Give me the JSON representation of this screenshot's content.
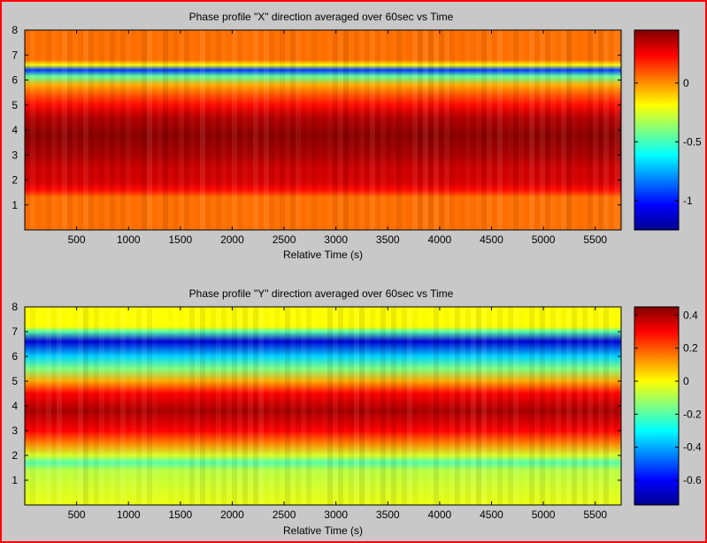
{
  "colors": {
    "frame_border": "#ff0000",
    "background": "#c8c8c8"
  },
  "chart_data": [
    {
      "type": "heatmap",
      "title": "Phase profile \"X\" direction averaged over 60sec vs Time",
      "xlabel": "Relative Time (s)",
      "ylabel": "",
      "xlim": [
        0,
        5750
      ],
      "ylim": [
        0,
        8
      ],
      "xticks": [
        500,
        1000,
        1500,
        2000,
        2500,
        3000,
        3500,
        4000,
        4500,
        5000,
        5500
      ],
      "yticks": [
        1,
        2,
        3,
        4,
        5,
        6,
        7,
        8
      ],
      "colormap": "jet",
      "clim": [
        -1.25,
        0.45
      ],
      "colorbar_ticks": [
        0,
        -0.5,
        -1
      ],
      "colorbar_ticklabels": [
        "0",
        "-0.5",
        "-1"
      ],
      "profile": [
        {
          "y": 0.0,
          "v": 0.05
        },
        {
          "y": 1.3,
          "v": 0.05
        },
        {
          "y": 1.6,
          "v": 0.22
        },
        {
          "y": 1.9,
          "v": 0.3
        },
        {
          "y": 2.5,
          "v": 0.32
        },
        {
          "y": 3.0,
          "v": 0.38
        },
        {
          "y": 3.8,
          "v": 0.43
        },
        {
          "y": 4.5,
          "v": 0.36
        },
        {
          "y": 5.0,
          "v": 0.22
        },
        {
          "y": 5.4,
          "v": 0.1
        },
        {
          "y": 5.8,
          "v": -0.05
        },
        {
          "y": 6.15,
          "v": -0.45
        },
        {
          "y": 6.4,
          "v": -0.95
        },
        {
          "y": 6.6,
          "v": -0.2
        },
        {
          "y": 6.8,
          "v": 0.05
        },
        {
          "y": 8.0,
          "v": 0.05
        }
      ]
    },
    {
      "type": "heatmap",
      "title": "Phase profile \"Y\" direction averaged over 60sec vs Time",
      "xlabel": "Relative Time (s)",
      "ylabel": "",
      "xlim": [
        0,
        5750
      ],
      "ylim": [
        0,
        8
      ],
      "xticks": [
        500,
        1000,
        1500,
        2000,
        2500,
        3000,
        3500,
        4000,
        4500,
        5000,
        5500
      ],
      "yticks": [
        1,
        2,
        3,
        4,
        5,
        6,
        7,
        8
      ],
      "colormap": "jet",
      "clim": [
        -0.75,
        0.45
      ],
      "colorbar_ticks": [
        0.4,
        0.2,
        0,
        -0.2,
        -0.4,
        -0.6
      ],
      "colorbar_ticklabels": [
        "0.4",
        "0.2",
        "0",
        "-0.2",
        "-0.4",
        "-0.6"
      ],
      "profile": [
        {
          "y": 0.0,
          "v": -0.02
        },
        {
          "y": 1.4,
          "v": -0.08
        },
        {
          "y": 1.7,
          "v": -0.2
        },
        {
          "y": 2.0,
          "v": -0.05
        },
        {
          "y": 2.5,
          "v": 0.15
        },
        {
          "y": 3.0,
          "v": 0.3
        },
        {
          "y": 3.8,
          "v": 0.4
        },
        {
          "y": 4.5,
          "v": 0.3
        },
        {
          "y": 5.0,
          "v": 0.1
        },
        {
          "y": 5.5,
          "v": -0.15
        },
        {
          "y": 6.0,
          "v": -0.35
        },
        {
          "y": 6.6,
          "v": -0.65
        },
        {
          "y": 7.0,
          "v": -0.2
        },
        {
          "y": 7.2,
          "v": 0.0
        },
        {
          "y": 8.0,
          "v": 0.0
        }
      ]
    }
  ]
}
